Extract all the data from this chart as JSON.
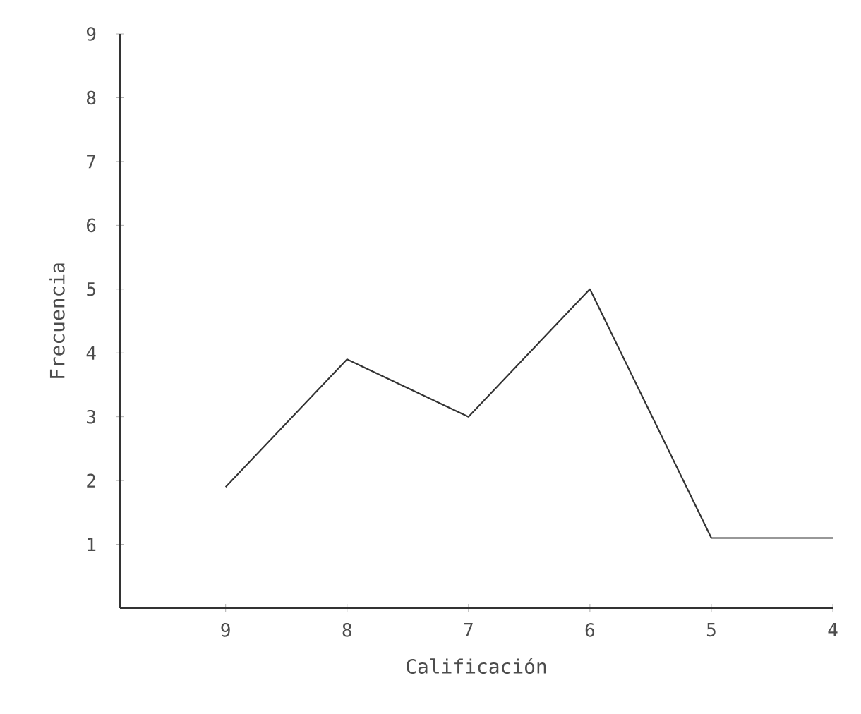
{
  "chart_data": {
    "type": "line",
    "xlabel": "Calificación",
    "ylabel": "Frecuencia",
    "categories": [
      "9",
      "8",
      "7",
      "6",
      "5",
      "4"
    ],
    "values": [
      1.9,
      3.9,
      3.0,
      5.0,
      1.1,
      1.1
    ],
    "color": "#333333",
    "ylim": [
      0,
      9
    ],
    "yticks": [
      1,
      2,
      3,
      4,
      5,
      6,
      7,
      8,
      9
    ],
    "grid": false,
    "marker": "none",
    "line_style": "solid"
  }
}
